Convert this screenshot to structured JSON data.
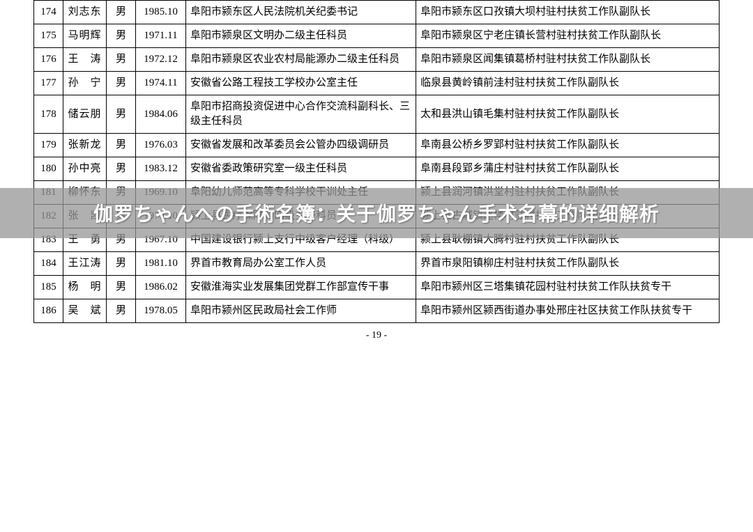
{
  "overlay": {
    "text": "伽罗ちゃんへの手術名簿：关于伽罗ちゃん手术名幕的详细解析"
  },
  "page_number": "- 19 -",
  "table": {
    "rows": [
      {
        "num": "174",
        "name": "刘志东",
        "gender": "男",
        "date": "1985.10",
        "pos1": "阜阳市颍东区人民法院机关纪委书记",
        "pos2": "阜阳市颍东区口孜镇大坝村驻村扶贫工作队副队长"
      },
      {
        "num": "175",
        "name": "马明辉",
        "gender": "男",
        "date": "1971.11",
        "pos1": "阜阳市颍泉区文明办二级主任科员",
        "pos2": "阜阳市颍泉区宁老庄镇长营村驻村扶贫工作队副队长"
      },
      {
        "num": "176",
        "name": "王　涛",
        "gender": "男",
        "date": "1972.12",
        "pos1": "阜阳市颍泉区农业农村局能源办二级主任科员",
        "pos2": "阜阳市颍泉区闻集镇葛桥村驻村扶贫工作队副队长"
      },
      {
        "num": "177",
        "name": "孙　宁",
        "gender": "男",
        "date": "1974.11",
        "pos1": "安徽省公路工程技工学校办公室主任",
        "pos2": "临泉县黄岭镇前洼村驻村扶贫工作队副队长"
      },
      {
        "num": "178",
        "name": "储云朋",
        "gender": "男",
        "date": "1984.06",
        "pos1": "阜阳市招商投资促进中心合作交流科副科长、三级主任科员",
        "pos2": "太和县洪山镇毛集村驻村扶贫工作队副队长"
      },
      {
        "num": "179",
        "name": "张新龙",
        "gender": "男",
        "date": "1976.03",
        "pos1": "安徽省发展和改革委员会公管办四级调研员",
        "pos2": "阜南县公桥乡罗郢村驻村扶贫工作队副队长"
      },
      {
        "num": "180",
        "name": "孙中亮",
        "gender": "男",
        "date": "1983.12",
        "pos1": "安徽省委政策研究室一级主任科员",
        "pos2": "阜南县段郢乡蒲庄村驻村扶贫工作队副队长"
      },
      {
        "num": "181",
        "name": "柳怀东",
        "gender": "男",
        "date": "1969.10",
        "pos1": "阜阳幼儿师范高等专科学校干训处主任",
        "pos2": "颍上县润河镇洪堂村驻村扶贫工作队副队长"
      },
      {
        "num": "182",
        "name": "张　凯",
        "gender": "男",
        "date": "1979.10",
        "pos1": "颍上县医疗保障局四级主任科员",
        "pos2": "颍上县古城镇赵楼村驻村扶贫工作队副队长"
      },
      {
        "num": "183",
        "name": "王　勇",
        "gender": "男",
        "date": "1967.10",
        "pos1": "中国建设银行颍上支行中级客户经理（科级）",
        "pos2": "颍上县耿棚镇大腾村驻村扶贫工作队副队长"
      },
      {
        "num": "184",
        "name": "王江涛",
        "gender": "男",
        "date": "1981.10",
        "pos1": "界首市教育局办公室工作人员",
        "pos2": "界首市泉阳镇柳庄村驻村扶贫工作队副队长"
      },
      {
        "num": "185",
        "name": "杨　明",
        "gender": "男",
        "date": "1986.02",
        "pos1": "安徽淮海实业发展集团党群工作部宣传干事",
        "pos2": "阜阳市颍州区三塔集镇花园村驻村扶贫工作队扶贫专干"
      },
      {
        "num": "186",
        "name": "吴　斌",
        "gender": "男",
        "date": "1978.05",
        "pos1": "阜阳市颍州区民政局社会工作师",
        "pos2": "阜阳市颍州区颍西街道办事处邢庄社区扶贫工作队扶贫专干"
      }
    ]
  }
}
